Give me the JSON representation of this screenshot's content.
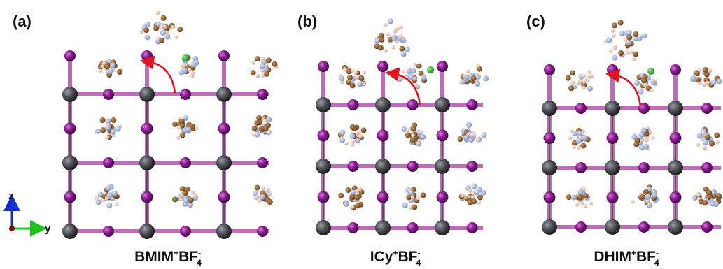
{
  "panels": [
    {
      "label": "(a)",
      "caption": {
        "cation": "BMIM",
        "cation_charge": "+",
        "anion": "BF",
        "anion_charge": "-",
        "anion_count": "4"
      }
    },
    {
      "label": "(b)",
      "caption": {
        "cation": "ICy",
        "cation_charge": "+",
        "anion": "BF",
        "anion_charge": "-",
        "anion_count": "4"
      }
    },
    {
      "label": "(c)",
      "caption": {
        "cation": "DHIM",
        "cation_charge": "+",
        "anion": "BF",
        "anion_charge": "-",
        "anion_count": "4"
      }
    }
  ],
  "axes": {
    "vertical": "z",
    "horizontal": "y"
  }
}
